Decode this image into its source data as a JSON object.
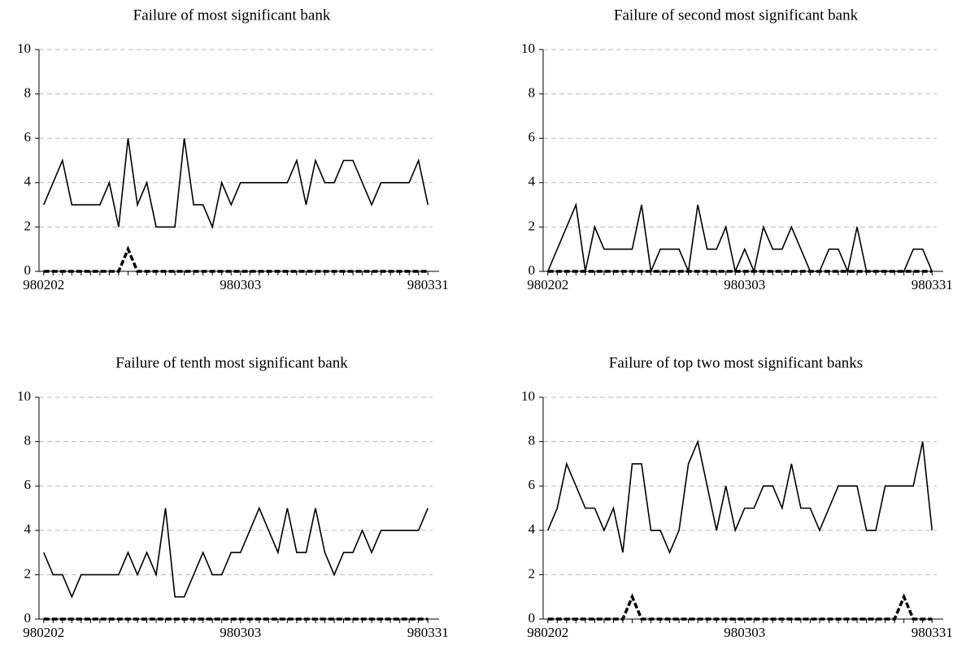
{
  "chart_data": [
    {
      "type": "line",
      "title": "Failure of most significant bank",
      "categories": [
        "980202",
        null,
        null,
        null,
        null,
        null,
        null,
        null,
        null,
        null,
        null,
        null,
        null,
        null,
        null,
        null,
        null,
        null,
        null,
        null,
        null,
        "980303",
        null,
        null,
        null,
        null,
        null,
        null,
        null,
        null,
        null,
        null,
        null,
        null,
        null,
        null,
        null,
        null,
        null,
        null,
        null,
        "980331"
      ],
      "series": [
        {
          "color": "#000000",
          "dashed": false,
          "values": [
            3,
            4,
            5,
            3,
            3,
            3,
            3,
            4,
            2,
            6,
            3,
            4,
            2,
            2,
            2,
            6,
            3,
            3,
            2,
            4,
            3,
            4,
            4,
            4,
            4,
            4,
            4,
            5,
            3,
            5,
            4,
            4,
            5,
            5,
            4,
            3,
            4,
            4,
            4,
            4,
            5,
            3
          ]
        },
        {
          "color": "#000000",
          "dashed": true,
          "values": [
            0,
            0,
            0,
            0,
            0,
            0,
            0,
            0,
            0,
            1,
            0,
            0,
            0,
            0,
            0,
            0,
            0,
            0,
            0,
            0,
            0,
            0,
            0,
            0,
            0,
            0,
            0,
            0,
            0,
            0,
            0,
            0,
            0,
            0,
            0,
            0,
            0,
            0,
            0,
            0,
            0,
            0
          ]
        }
      ],
      "ylim": [
        0,
        10
      ],
      "yticks": [
        0,
        2,
        4,
        6,
        8,
        10
      ],
      "grid": true
    },
    {
      "type": "line",
      "title": "Failure of second most significant bank",
      "categories": [
        "980202",
        null,
        null,
        null,
        null,
        null,
        null,
        null,
        null,
        null,
        null,
        null,
        null,
        null,
        null,
        null,
        null,
        null,
        null,
        null,
        null,
        "980303",
        null,
        null,
        null,
        null,
        null,
        null,
        null,
        null,
        null,
        null,
        null,
        null,
        null,
        null,
        null,
        null,
        null,
        null,
        null,
        "980331"
      ],
      "series": [
        {
          "color": "#000000",
          "dashed": false,
          "values": [
            0,
            1,
            2,
            3,
            0,
            2,
            1,
            1,
            1,
            1,
            3,
            0,
            1,
            1,
            1,
            0,
            3,
            1,
            1,
            2,
            0,
            1,
            0,
            2,
            1,
            1,
            2,
            1,
            0,
            0,
            1,
            1,
            0,
            2,
            0,
            0,
            0,
            0,
            0,
            1,
            1,
            0
          ]
        },
        {
          "color": "#000000",
          "dashed": true,
          "values": [
            0,
            0,
            0,
            0,
            0,
            0,
            0,
            0,
            0,
            0,
            0,
            0,
            0,
            0,
            0,
            0,
            0,
            0,
            0,
            0,
            0,
            0,
            0,
            0,
            0,
            0,
            0,
            0,
            0,
            0,
            0,
            0,
            0,
            0,
            0,
            0,
            0,
            0,
            0,
            0,
            0,
            0
          ]
        }
      ],
      "ylim": [
        0,
        10
      ],
      "yticks": [
        0,
        2,
        4,
        6,
        8,
        10
      ],
      "grid": true
    },
    {
      "type": "line",
      "title": "Failure of tenth most significant bank",
      "categories": [
        "980202",
        null,
        null,
        null,
        null,
        null,
        null,
        null,
        null,
        null,
        null,
        null,
        null,
        null,
        null,
        null,
        null,
        null,
        null,
        null,
        null,
        "980303",
        null,
        null,
        null,
        null,
        null,
        null,
        null,
        null,
        null,
        null,
        null,
        null,
        null,
        null,
        null,
        null,
        null,
        null,
        null,
        "980331"
      ],
      "series": [
        {
          "color": "#000000",
          "dashed": false,
          "values": [
            3,
            2,
            2,
            1,
            2,
            2,
            2,
            2,
            2,
            3,
            2,
            3,
            2,
            5,
            1,
            1,
            2,
            3,
            2,
            2,
            3,
            3,
            4,
            5,
            4,
            3,
            5,
            3,
            3,
            5,
            3,
            2,
            3,
            3,
            4,
            3,
            4,
            4,
            4,
            4,
            4,
            5
          ]
        },
        {
          "color": "#000000",
          "dashed": true,
          "values": [
            0,
            0,
            0,
            0,
            0,
            0,
            0,
            0,
            0,
            0,
            0,
            0,
            0,
            0,
            0,
            0,
            0,
            0,
            0,
            0,
            0,
            0,
            0,
            0,
            0,
            0,
            0,
            0,
            0,
            0,
            0,
            0,
            0,
            0,
            0,
            0,
            0,
            0,
            0,
            0,
            0,
            0
          ]
        }
      ],
      "ylim": [
        0,
        10
      ],
      "yticks": [
        0,
        2,
        4,
        6,
        8,
        10
      ],
      "grid": true
    },
    {
      "type": "line",
      "title": "Failure of top two most significant banks",
      "categories": [
        "980202",
        null,
        null,
        null,
        null,
        null,
        null,
        null,
        null,
        null,
        null,
        null,
        null,
        null,
        null,
        null,
        null,
        null,
        null,
        null,
        null,
        "980303",
        null,
        null,
        null,
        null,
        null,
        null,
        null,
        null,
        null,
        null,
        null,
        null,
        null,
        null,
        null,
        null,
        null,
        null,
        null,
        "980331"
      ],
      "series": [
        {
          "color": "#000000",
          "dashed": false,
          "values": [
            4,
            5,
            7,
            6,
            5,
            5,
            4,
            5,
            3,
            7,
            7,
            4,
            4,
            3,
            4,
            7,
            8,
            6,
            4,
            6,
            4,
            5,
            5,
            6,
            6,
            5,
            7,
            5,
            5,
            4,
            5,
            6,
            6,
            6,
            4,
            4,
            6,
            6,
            6,
            6,
            8,
            4
          ]
        },
        {
          "color": "#000000",
          "dashed": true,
          "values": [
            0,
            0,
            0,
            0,
            0,
            0,
            0,
            0,
            0,
            1,
            0,
            0,
            0,
            0,
            0,
            0,
            0,
            0,
            0,
            0,
            0,
            0,
            0,
            0,
            0,
            0,
            0,
            0,
            0,
            0,
            0,
            0,
            0,
            0,
            0,
            0,
            0,
            0,
            1,
            0,
            0,
            0
          ]
        }
      ],
      "ylim": [
        0,
        10
      ],
      "yticks": [
        0,
        2,
        4,
        6,
        8,
        10
      ],
      "grid": true
    }
  ]
}
